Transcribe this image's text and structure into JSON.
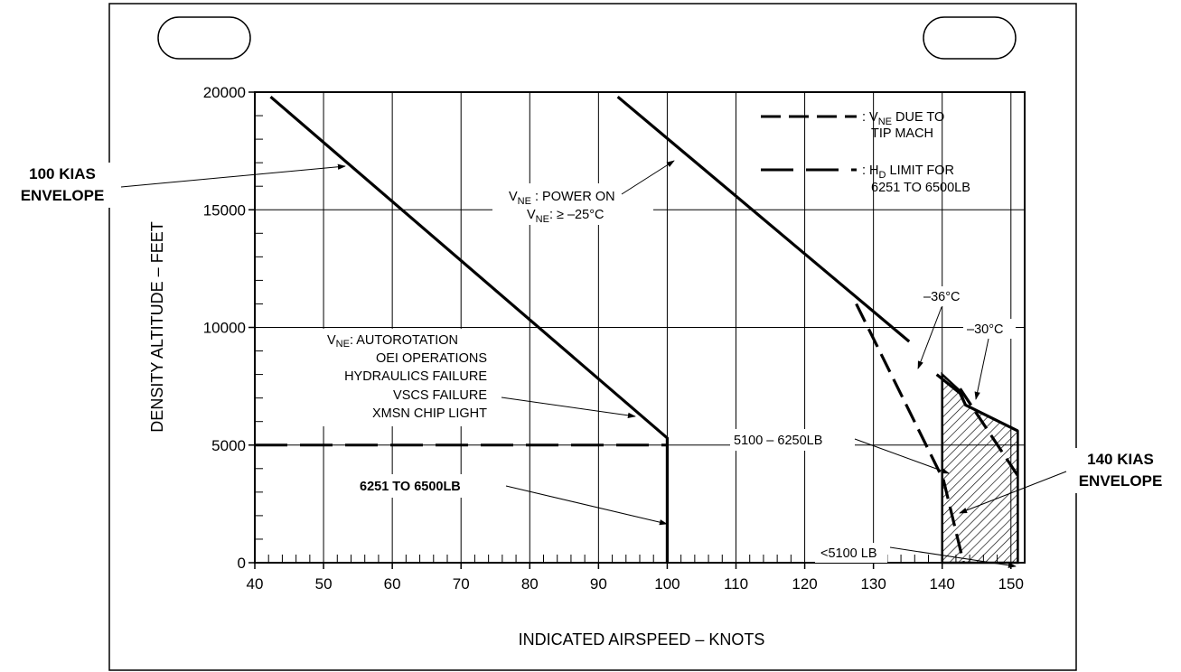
{
  "chart_data": {
    "type": "line",
    "xlabel": "INDICATED AIRSPEED – KNOTS",
    "ylabel": "DENSITY ALTITUDE – FEET",
    "xlim": [
      40,
      152
    ],
    "ylim": [
      0,
      20000
    ],
    "x_ticks": [
      40,
      50,
      60,
      70,
      80,
      90,
      100,
      110,
      120,
      130,
      140,
      150
    ],
    "y_ticks": [
      0,
      5000,
      10000,
      15000,
      20000
    ],
    "x_tick_labels": [
      "40",
      "50",
      "60",
      "70",
      "80",
      "90",
      "100",
      "110",
      "120",
      "130",
      "140",
      "150"
    ],
    "y_tick_labels": [
      "0",
      "5000",
      "10000",
      "15000",
      "20000"
    ],
    "grid": "major",
    "series": [
      {
        "id": "vne100",
        "style": "solid",
        "x": [
          42.3,
          100,
          100
        ],
        "y": [
          19800,
          5300,
          0
        ]
      },
      {
        "id": "vne140",
        "style": "solid",
        "x": [
          92.8,
          135.2
        ],
        "y": [
          19800,
          9400
        ]
      },
      {
        "id": "vne140b",
        "style": "solid",
        "x": [
          139.2,
          142.6,
          143.4,
          151
        ],
        "y": [
          8000,
          7200,
          6700,
          5600
        ]
      },
      {
        "id": "tipmach36",
        "style": "dashed",
        "x": [
          127.5,
          140.2,
          143.1
        ],
        "y": [
          11000,
          3500,
          0
        ]
      },
      {
        "id": "tipmach30",
        "style": "dashed",
        "x": [
          142.6,
          151
        ],
        "y": [
          7400,
          3700
        ]
      },
      {
        "id": "hd_limit",
        "style": "longdash",
        "x": [
          40,
          100
        ],
        "y": [
          5000,
          5000
        ]
      }
    ],
    "shaded_region": {
      "x": [
        140,
        140,
        142.6,
        143.4,
        151,
        151
      ],
      "y": [
        0,
        8000,
        7300,
        6700,
        5600,
        0
      ]
    },
    "legend": [
      {
        "style": "dashed",
        "line1": ": V",
        "sub": "NE",
        "line1_rest": " DUE TO",
        "line2": "TIP MACH"
      },
      {
        "style": "longdash",
        "line1": ": H",
        "sub": "D",
        "line1_rest": " LIMIT FOR",
        "line2": "6251 TO 6500LB"
      }
    ],
    "annotations": {
      "env100": [
        "100 KIAS",
        "ENVELOPE"
      ],
      "env140": [
        "140 KIAS",
        "ENVELOPE"
      ],
      "vne_power": {
        "l1_v": "V",
        "l1_sub": "NE",
        "l1_rest": " : POWER ON",
        "l2_v": "V",
        "l2_sub": "NE",
        "l2_rest": ": ≥ –25°C"
      },
      "vne_auto": {
        "v": "V",
        "sub": "NE",
        "rest": ": AUTOROTATION",
        "lines": [
          "OEI OPERATIONS",
          "HYDRAULICS FAILURE",
          "VSCS FAILURE",
          "XMSN CHIP LIGHT"
        ]
      },
      "weight_6251": "6251 TO 6500LB",
      "weight_5100": "5100 – 6250LB",
      "weight_lt5100": "<5100 LB",
      "temp36": "–36°C",
      "temp30": "–30°C"
    }
  }
}
